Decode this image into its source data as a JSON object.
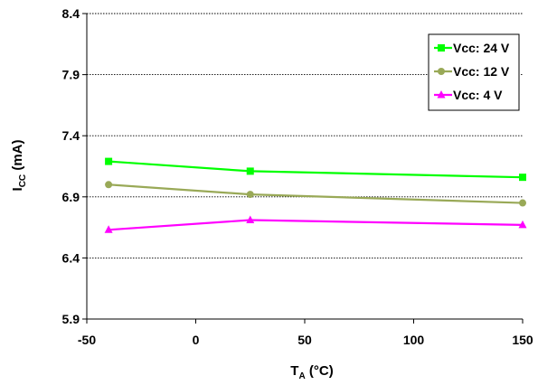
{
  "chart_data": {
    "type": "line",
    "title": "",
    "xlabel": {
      "main": "T",
      "sub": "A",
      "unit": " (°C)"
    },
    "ylabel": {
      "main": "I",
      "sub": "CC",
      "unit": " (mA)"
    },
    "xlim": [
      -50,
      150
    ],
    "ylim": [
      5.9,
      8.4
    ],
    "x_ticks": [
      -50,
      0,
      50,
      100,
      150
    ],
    "y_ticks": [
      5.9,
      6.4,
      6.9,
      7.4,
      7.9,
      8.4
    ],
    "x_tick_labels": [
      "-50",
      "0",
      "50",
      "100",
      "150"
    ],
    "y_tick_labels": [
      "5.9",
      "6.4",
      "6.9",
      "7.4",
      "7.9",
      "8.4"
    ],
    "grid": {
      "horizontal": true,
      "vertical": false,
      "style": "dotted"
    },
    "legend_position": "top-right",
    "series": [
      {
        "name": "Vcc: 24 V",
        "color": "#00ff00",
        "marker": "square",
        "x": [
          -40,
          25,
          150
        ],
        "y": [
          7.19,
          7.11,
          7.06
        ]
      },
      {
        "name": "Vcc: 12 V",
        "color": "#99a957",
        "marker": "circle",
        "x": [
          -40,
          25,
          150
        ],
        "y": [
          7.0,
          6.92,
          6.85
        ]
      },
      {
        "name": "Vcc: 4 V",
        "color": "#ff00ff",
        "marker": "triangle",
        "x": [
          -40,
          25,
          150
        ],
        "y": [
          6.63,
          6.71,
          6.67
        ]
      }
    ]
  }
}
